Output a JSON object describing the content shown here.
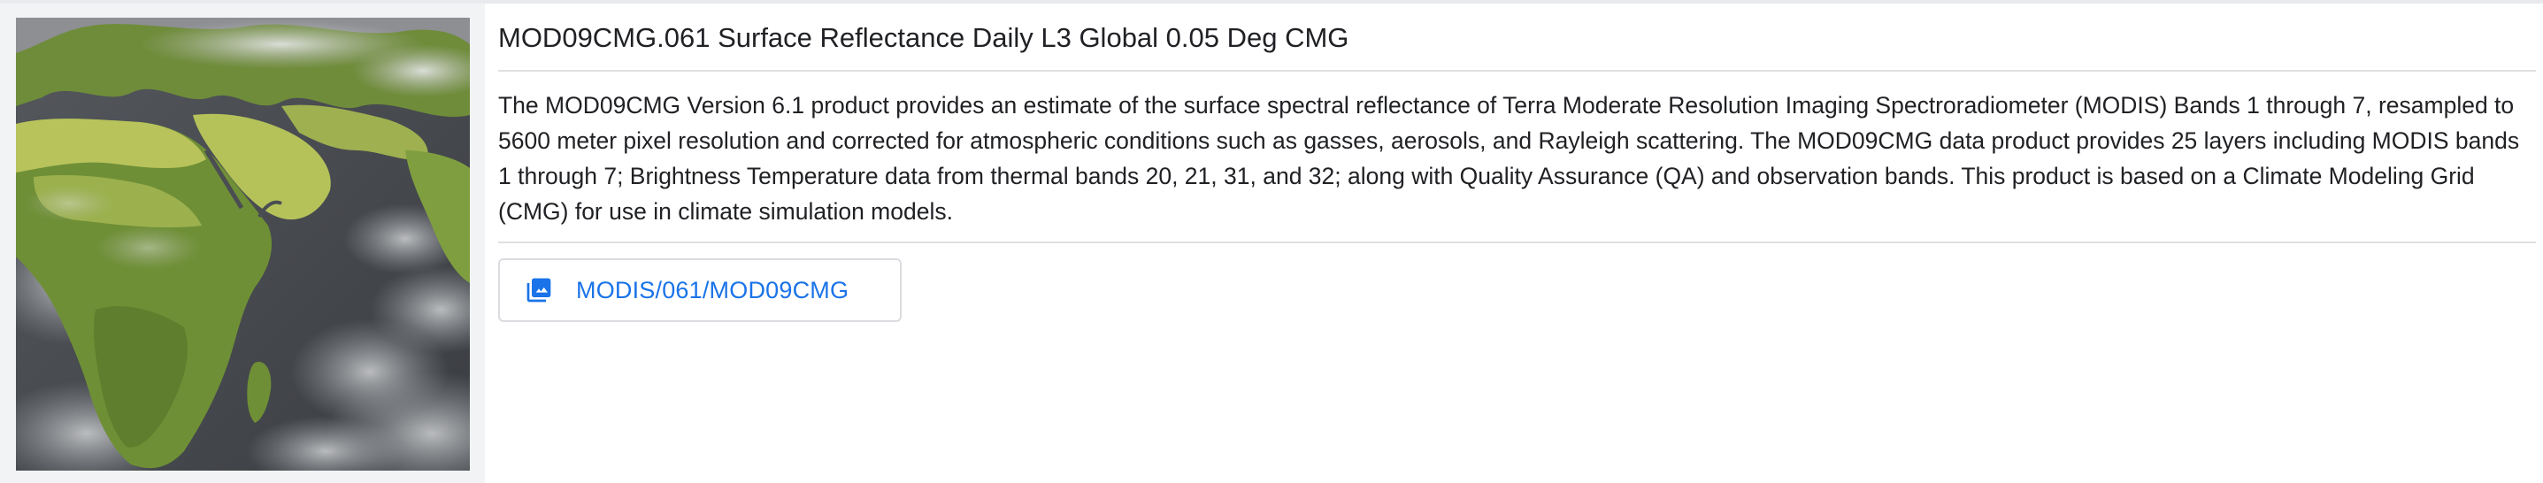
{
  "dataset": {
    "title": "MOD09CMG.061 Surface Reflectance Daily L3 Global 0.05 Deg CMG",
    "description": "The MOD09CMG Version 6.1 product provides an estimate of the surface spectral reflectance of Terra Moderate Resolution Imaging Spectroradiometer (MODIS) Bands 1 through 7, resampled to 5600 meter pixel resolution and corrected for atmospheric conditions such as gasses, aerosols, and Rayleigh scattering. The MOD09CMG data product provides 25 layers including MODIS bands 1 through 7; Brightness Temperature data from thermal bands 20, 21, 31, and 32; along with Quality Assurance (QA) and observation bands. This product is based on a Climate Modeling Grid (CMG) for use in climate simulation models.",
    "link_label": "MODIS/061/MOD09CMG",
    "link_icon": "image-collection-icon"
  },
  "colors": {
    "accent": "#1a73e8",
    "land_green": "#7a9a3e",
    "land_yellow": "#b9c45a",
    "ocean_dark": "#3f4247"
  }
}
